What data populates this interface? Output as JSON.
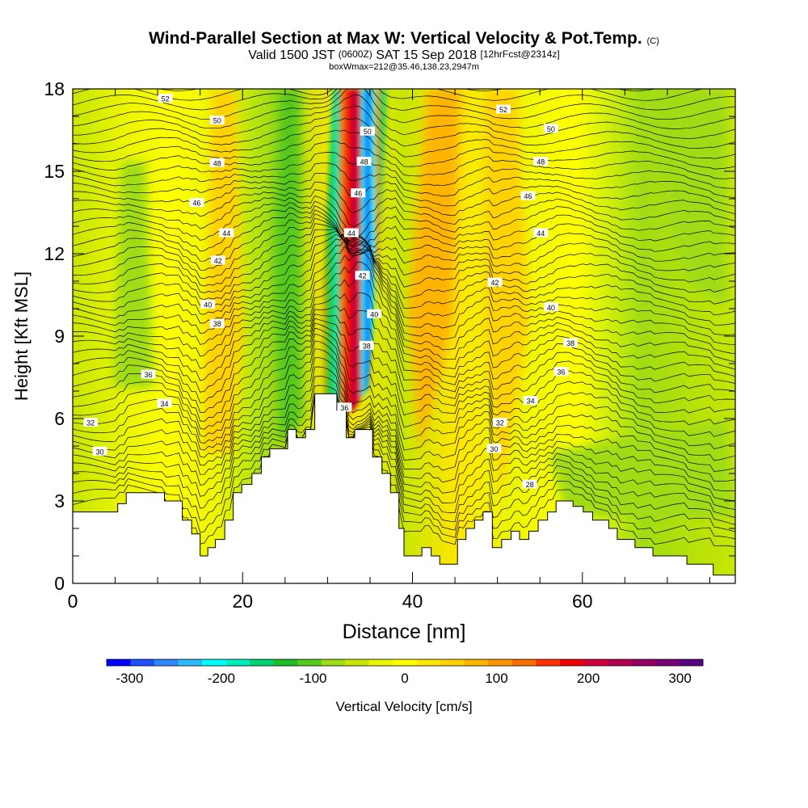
{
  "title": {
    "main": "Wind-Parallel Section at Max W: Vertical Velocity & Pot.Temp.",
    "mark": "(C)",
    "valid_prefix": "Valid 1500 JST",
    "valid_zone": "(0600Z)",
    "valid_date": "SAT 15 Sep 2018",
    "forecast": "[12hrFcst@2314z]",
    "box": "boxWmax=212@35.46,138.23,2947m"
  },
  "chart_data": {
    "type": "heatmap",
    "xlabel": "Distance [nm]",
    "ylabel": "Height [Kft MSL]",
    "xlim": [
      0,
      78
    ],
    "ylim": [
      0,
      18
    ],
    "x_ticks": [
      0,
      20,
      40,
      60
    ],
    "y_ticks": [
      0,
      3,
      6,
      9,
      12,
      15,
      18
    ],
    "colorbar": {
      "label": "Vertical Velocity [cm/s]",
      "ticks": [
        -300,
        -200,
        -100,
        0,
        100,
        200,
        300
      ],
      "range": [
        -325,
        325
      ],
      "colors": [
        "#0000ff",
        "#1e50ff",
        "#2d88ff",
        "#28bcff",
        "#00ffff",
        "#00eebe",
        "#00d278",
        "#1ebe28",
        "#55c81e",
        "#a0dc14",
        "#c8e600",
        "#ebf500",
        "#ffff00",
        "#ffe600",
        "#ffd200",
        "#ffb400",
        "#ff9600",
        "#ff6e00",
        "#ff3200",
        "#f00000",
        "#d2003c",
        "#b40050",
        "#960064",
        "#780078",
        "#5a0082"
      ]
    },
    "theta_labels": [
      {
        "value": "52",
        "x": 10.9,
        "y": 17.65
      },
      {
        "value": "50",
        "x": 17,
        "y": 16.85
      },
      {
        "value": "48",
        "x": 17,
        "y": 15.3
      },
      {
        "value": "46",
        "x": 14.6,
        "y": 13.85
      },
      {
        "value": "44",
        "x": 18.1,
        "y": 12.75
      },
      {
        "value": "42",
        "x": 17.1,
        "y": 11.75
      },
      {
        "value": "40",
        "x": 15.9,
        "y": 10.15
      },
      {
        "value": "38",
        "x": 17,
        "y": 9.45
      },
      {
        "value": "36",
        "x": 8.9,
        "y": 7.6
      },
      {
        "value": "34",
        "x": 10.8,
        "y": 6.55
      },
      {
        "value": "32",
        "x": 2.1,
        "y": 5.85
      },
      {
        "value": "30",
        "x": 3.2,
        "y": 4.8
      },
      {
        "value": "50",
        "x": 34.7,
        "y": 16.45
      },
      {
        "value": "48",
        "x": 34.3,
        "y": 15.35
      },
      {
        "value": "46",
        "x": 33.6,
        "y": 14.2
      },
      {
        "value": "44",
        "x": 32.8,
        "y": 12.75
      },
      {
        "value": "42",
        "x": 34.1,
        "y": 11.2
      },
      {
        "value": "40",
        "x": 35.5,
        "y": 9.8
      },
      {
        "value": "38",
        "x": 34.6,
        "y": 8.65
      },
      {
        "value": "36",
        "x": 32,
        "y": 6.4
      },
      {
        "value": "52",
        "x": 50.7,
        "y": 17.25
      },
      {
        "value": "50",
        "x": 56.3,
        "y": 16.55
      },
      {
        "value": "48",
        "x": 55.1,
        "y": 15.35
      },
      {
        "value": "46",
        "x": 53.6,
        "y": 14.1
      },
      {
        "value": "44",
        "x": 55.1,
        "y": 12.75
      },
      {
        "value": "42",
        "x": 49.7,
        "y": 10.95
      },
      {
        "value": "40",
        "x": 56.3,
        "y": 10.05
      },
      {
        "value": "38",
        "x": 58.6,
        "y": 8.75
      },
      {
        "value": "36",
        "x": 57.5,
        "y": 7.7
      },
      {
        "value": "34",
        "x": 53.9,
        "y": 6.65
      },
      {
        "value": "32",
        "x": 50.3,
        "y": 5.85
      },
      {
        "value": "30",
        "x": 49.6,
        "y": 4.9
      },
      {
        "value": "28",
        "x": 53.8,
        "y": 3.6
      }
    ],
    "terrain_kft": [
      [
        0,
        2.6
      ],
      [
        5.3,
        2.6
      ],
      [
        5.3,
        2.9
      ],
      [
        6.3,
        2.9
      ],
      [
        6.3,
        3.3
      ],
      [
        10.8,
        3.3
      ],
      [
        10.8,
        3.0
      ],
      [
        12.9,
        3.0
      ],
      [
        12.9,
        2.3
      ],
      [
        14.0,
        2.3
      ],
      [
        14.0,
        1.8
      ],
      [
        15.0,
        1.8
      ],
      [
        15.0,
        1.0
      ],
      [
        15.9,
        1.0
      ],
      [
        15.9,
        1.3
      ],
      [
        16.8,
        1.3
      ],
      [
        16.8,
        1.6
      ],
      [
        17.9,
        1.6
      ],
      [
        17.9,
        2.3
      ],
      [
        18.9,
        2.3
      ],
      [
        18.9,
        3.3
      ],
      [
        19.9,
        3.3
      ],
      [
        19.9,
        3.6
      ],
      [
        21.1,
        3.6
      ],
      [
        21.1,
        4.0
      ],
      [
        22.2,
        4.0
      ],
      [
        22.2,
        4.6
      ],
      [
        23.2,
        4.6
      ],
      [
        23.2,
        4.9
      ],
      [
        25.3,
        4.9
      ],
      [
        25.3,
        5.6
      ],
      [
        26.3,
        5.6
      ],
      [
        26.3,
        5.3
      ],
      [
        27.4,
        5.3
      ],
      [
        27.4,
        5.6
      ],
      [
        28.5,
        5.6
      ],
      [
        28.5,
        6.9
      ],
      [
        31.1,
        6.9
      ],
      [
        31.1,
        6.3
      ],
      [
        32.2,
        6.3
      ],
      [
        32.2,
        5.3
      ],
      [
        33.2,
        5.3
      ],
      [
        33.2,
        5.6
      ],
      [
        35.3,
        5.6
      ],
      [
        35.3,
        4.6
      ],
      [
        36.4,
        4.6
      ],
      [
        36.4,
        4.0
      ],
      [
        37.4,
        4.0
      ],
      [
        37.4,
        3.3
      ],
      [
        38.4,
        3.3
      ],
      [
        38.4,
        2.0
      ],
      [
        39.0,
        2.0
      ],
      [
        39.0,
        1.0
      ],
      [
        41.1,
        1.0
      ],
      [
        41.1,
        1.3
      ],
      [
        42.2,
        1.3
      ],
      [
        42.2,
        1.0
      ],
      [
        43.2,
        1.0
      ],
      [
        43.2,
        0.7
      ],
      [
        45.3,
        0.7
      ],
      [
        45.3,
        1.6
      ],
      [
        46.3,
        1.6
      ],
      [
        46.3,
        2.0
      ],
      [
        47.3,
        2.0
      ],
      [
        47.3,
        2.3
      ],
      [
        48.3,
        2.3
      ],
      [
        48.3,
        2.6
      ],
      [
        49.4,
        2.6
      ],
      [
        49.4,
        1.3
      ],
      [
        50.5,
        1.3
      ],
      [
        50.5,
        1.6
      ],
      [
        51.6,
        1.6
      ],
      [
        51.6,
        1.9
      ],
      [
        52.6,
        1.9
      ],
      [
        52.6,
        1.6
      ],
      [
        53.7,
        1.6
      ],
      [
        53.7,
        1.9
      ],
      [
        54.8,
        1.9
      ],
      [
        54.8,
        2.3
      ],
      [
        55.9,
        2.3
      ],
      [
        55.9,
        2.6
      ],
      [
        56.9,
        2.6
      ],
      [
        56.9,
        3.0
      ],
      [
        58.9,
        3.0
      ],
      [
        58.9,
        2.8
      ],
      [
        60.1,
        2.8
      ],
      [
        60.1,
        2.6
      ],
      [
        61.2,
        2.6
      ],
      [
        61.2,
        2.3
      ],
      [
        63.1,
        2.3
      ],
      [
        63.1,
        2.0
      ],
      [
        64.1,
        2.0
      ],
      [
        64.1,
        1.6
      ],
      [
        66.2,
        1.6
      ],
      [
        66.2,
        1.3
      ],
      [
        68.3,
        1.3
      ],
      [
        68.3,
        1.0
      ],
      [
        72.3,
        1.0
      ],
      [
        72.3,
        0.7
      ],
      [
        75.4,
        0.7
      ],
      [
        75.4,
        0.3
      ],
      [
        78.0,
        0.3
      ]
    ]
  }
}
